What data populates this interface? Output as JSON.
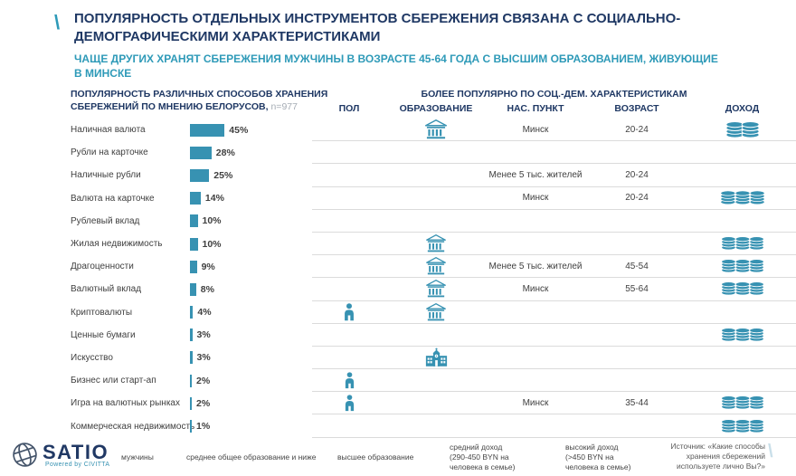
{
  "decor": {
    "slash": "\\"
  },
  "colors": {
    "teal": "#3792B2",
    "navy": "#1F3864",
    "subtitle_teal": "#2E9AB8",
    "row_line": "#DBDBDB",
    "text": "#404040",
    "muted": "#A6ADB5",
    "source_text": "#595959",
    "logo_navy": "#203864",
    "globe_gray": "#44546A"
  },
  "title": "ПОПУЛЯРНОСТЬ ОТДЕЛЬНЫХ ИНСТРУМЕНТОВ СБЕРЕЖЕНИЯ СВЯЗАНА С СОЦИАЛЬНО-\nДЕМОГРАФИЧЕСКИМИ ХАРАКТЕРИСТИКАМИ",
  "subtitle": "ЧАЩЕ ДРУГИХ ХРАНЯТ СБЕРЕЖЕНИЯ МУЖЧИНЫ В ВОЗРАСТЕ 45-64 ГОДА С ВЫСШИМ ОБРАЗОВАНИЕМ, ЖИВУЮЩИЕ\nВ МИНСКЕ",
  "left_chart": {
    "heading": "ПОПУЛЯРНОСТЬ РАЗЛИЧНЫХ СПОСОБОВ ХРАНЕНИЯ\nСБЕРЕЖЕНИЙ ПО МНЕНИЮ БЕЛОРУСОВ,",
    "n_label": "n=977",
    "value_suffix": "%",
    "rows": [
      {
        "label": "Наличная валюта",
        "value": 45
      },
      {
        "label": "Рубли на карточке",
        "value": 28
      },
      {
        "label": "Наличные рубли",
        "value": 25
      },
      {
        "label": "Валюта на карточке",
        "value": 14
      },
      {
        "label": "Рублевый вклад",
        "value": 10
      },
      {
        "label": "Жилая недвижимость",
        "value": 10
      },
      {
        "label": "Драгоценности",
        "value": 9
      },
      {
        "label": "Валютный вклад",
        "value": 8
      },
      {
        "label": "Криптовалюты",
        "value": 4
      },
      {
        "label": "Ценные бумаги",
        "value": 3
      },
      {
        "label": "Искусство",
        "value": 3
      },
      {
        "label": "Бизнес или старт-ап",
        "value": 2
      },
      {
        "label": "Игра на валютных рынках",
        "value": 2
      },
      {
        "label": "Коммерческая недвижимость",
        "value": 1
      }
    ]
  },
  "right_table": {
    "heading": "БОЛЕЕ ПОПУЛЯРНО ПО СОЦ.-ДЕМ. ХАРАКТЕРИСТИКАМ",
    "columns": [
      "ПОЛ",
      "ОБРАЗОВАНИЕ",
      "НАС. ПУНКТ",
      "ВОЗРАСТ",
      "ДОХОД"
    ],
    "rows": [
      {
        "gender": null,
        "education": "higher-education",
        "settlement": "Минск",
        "age": "20-24",
        "income": "income-medium"
      },
      {
        "gender": null,
        "education": null,
        "settlement": null,
        "age": null,
        "income": null
      },
      {
        "gender": null,
        "education": null,
        "settlement": "Менее 5 тыс. жителей",
        "age": "20-24",
        "income": null
      },
      {
        "gender": null,
        "education": null,
        "settlement": "Минск",
        "age": "20-24",
        "income": "income-high"
      },
      {
        "gender": null,
        "education": null,
        "settlement": null,
        "age": null,
        "income": null
      },
      {
        "gender": null,
        "education": "higher-education",
        "settlement": null,
        "age": null,
        "income": "income-high"
      },
      {
        "gender": null,
        "education": "higher-education",
        "settlement": "Менее 5 тыс. жителей",
        "age": "45-54",
        "income": "income-high"
      },
      {
        "gender": null,
        "education": "higher-education",
        "settlement": "Минск",
        "age": "55-64",
        "income": "income-high"
      },
      {
        "gender": "male",
        "education": "higher-education",
        "settlement": null,
        "age": null,
        "income": null
      },
      {
        "gender": null,
        "education": null,
        "settlement": null,
        "age": null,
        "income": "income-high"
      },
      {
        "gender": null,
        "education": "secondary-education",
        "settlement": null,
        "age": null,
        "income": null
      },
      {
        "gender": "male",
        "education": null,
        "settlement": null,
        "age": null,
        "income": null
      },
      {
        "gender": "male",
        "education": null,
        "settlement": "Минск",
        "age": "35-44",
        "income": "income-high"
      },
      {
        "gender": null,
        "education": null,
        "settlement": null,
        "age": null,
        "income": "income-high"
      }
    ]
  },
  "legend": {
    "male": "мужчины",
    "secondary_education": "среднее общее образование и ниже",
    "higher_education": "высшее образование",
    "income_medium": "средний доход\n(290-450 BYN на\nчеловека в семье)",
    "income_high": "высокий доход\n(>450 BYN на\nчеловека в семье)"
  },
  "footer": {
    "logo_text": "SATIO",
    "logo_sub": "Powered by CIVITTA",
    "source": "Источник: «Какие способы\nхранения сбережений\nиспользуете лично Вы?»"
  },
  "chart_data": {
    "type": "bar",
    "orientation": "horizontal",
    "title": "ПОПУЛЯРНОСТЬ РАЗЛИЧНЫХ СПОСОБОВ ХРАНЕНИЯ СБЕРЕЖЕНИЙ ПО МНЕНИЮ БЕЛОРУСОВ",
    "sample_size": "n=977",
    "unit": "%",
    "categories": [
      "Наличная валюта",
      "Рубли на карточке",
      "Наличные рубли",
      "Валюта на карточке",
      "Рублевый вклад",
      "Жилая недвижимость",
      "Драгоценности",
      "Валютный вклад",
      "Криптовалюты",
      "Ценные бумаги",
      "Искусство",
      "Бизнес или старт-ап",
      "Игра на валютных рынках",
      "Коммерческая недвижимость"
    ],
    "values": [
      45,
      28,
      25,
      14,
      10,
      10,
      9,
      8,
      4,
      3,
      3,
      2,
      2,
      1
    ],
    "xlim": [
      0,
      50
    ],
    "grid": false,
    "companion_table": {
      "heading": "БОЛЕЕ ПОПУЛЯРНО ПО СОЦ.-ДЕМ. ХАРАКТЕРИСТИКАМ",
      "columns": [
        "ПОЛ",
        "ОБРАЗОВАНИЕ",
        "НАС. ПУНКТ",
        "ВОЗРАСТ",
        "ДОХОД"
      ],
      "rows": [
        [
          "",
          "высшее образование",
          "Минск",
          "20-24",
          "средний доход"
        ],
        [
          "",
          "",
          "",
          "",
          ""
        ],
        [
          "",
          "",
          "Менее 5 тыс. жителей",
          "20-24",
          ""
        ],
        [
          "",
          "",
          "Минск",
          "20-24",
          "высокий доход"
        ],
        [
          "",
          "",
          "",
          "",
          ""
        ],
        [
          "",
          "высшее образование",
          "",
          "",
          "высокий доход"
        ],
        [
          "",
          "высшее образование",
          "Менее 5 тыс. жителей",
          "45-54",
          "высокий доход"
        ],
        [
          "",
          "высшее образование",
          "Минск",
          "55-64",
          "высокий доход"
        ],
        [
          "мужчины",
          "высшее образование",
          "",
          "",
          ""
        ],
        [
          "",
          "",
          "",
          "",
          "высокий доход"
        ],
        [
          "",
          "среднее общее образование и ниже",
          "",
          "",
          ""
        ],
        [
          "мужчины",
          "",
          "",
          "",
          ""
        ],
        [
          "мужчины",
          "",
          "Минск",
          "35-44",
          "высокий доход"
        ],
        [
          "",
          "",
          "",
          "",
          "высокий доход"
        ]
      ]
    }
  }
}
